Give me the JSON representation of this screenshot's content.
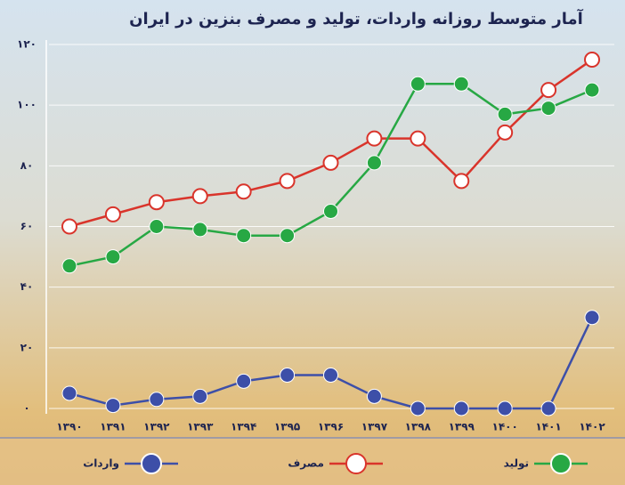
{
  "chart_data": {
    "type": "line",
    "title": "آمار متوسط روزانه واردات، تولید و مصرف بنزین در ایران",
    "categories": [
      "۱۳۹۰",
      "۱۳۹۱",
      "۱۳۹۲",
      "۱۳۹۳",
      "۱۳۹۴",
      "۱۳۹۵",
      "۱۳۹۶",
      "۱۳۹۷",
      "۱۳۹۸",
      "۱۳۹۹",
      "۱۴۰۰",
      "۱۴۰۱",
      "۱۴۰۲"
    ],
    "series": [
      {
        "name": "مصرف",
        "color": "#d9342b",
        "hollow": true,
        "values": [
          60,
          64,
          68,
          70,
          71.5,
          75,
          81,
          89,
          89,
          75,
          91,
          105,
          115
        ]
      },
      {
        "name": "تولید",
        "color": "#27a844",
        "values": [
          47,
          50,
          60,
          59,
          57,
          57,
          65,
          81,
          107,
          107,
          97,
          99,
          105
        ]
      },
      {
        "name": "واردات",
        "color": "#3d4fa8",
        "values": [
          5,
          1,
          3,
          4,
          9,
          11,
          11,
          4,
          0,
          0,
          0,
          0,
          30
        ]
      }
    ],
    "ylim": [
      0,
      120
    ],
    "yticks": [
      {
        "value": 0,
        "label": "۰"
      },
      {
        "value": 20,
        "label": "۲۰"
      },
      {
        "value": 40,
        "label": "۴۰"
      },
      {
        "value": 60,
        "label": "۶۰"
      },
      {
        "value": 80,
        "label": "۸۰"
      },
      {
        "value": 100,
        "label": "۱۰۰"
      },
      {
        "value": 120,
        "label": "۱۲۰"
      }
    ],
    "grid": true
  }
}
